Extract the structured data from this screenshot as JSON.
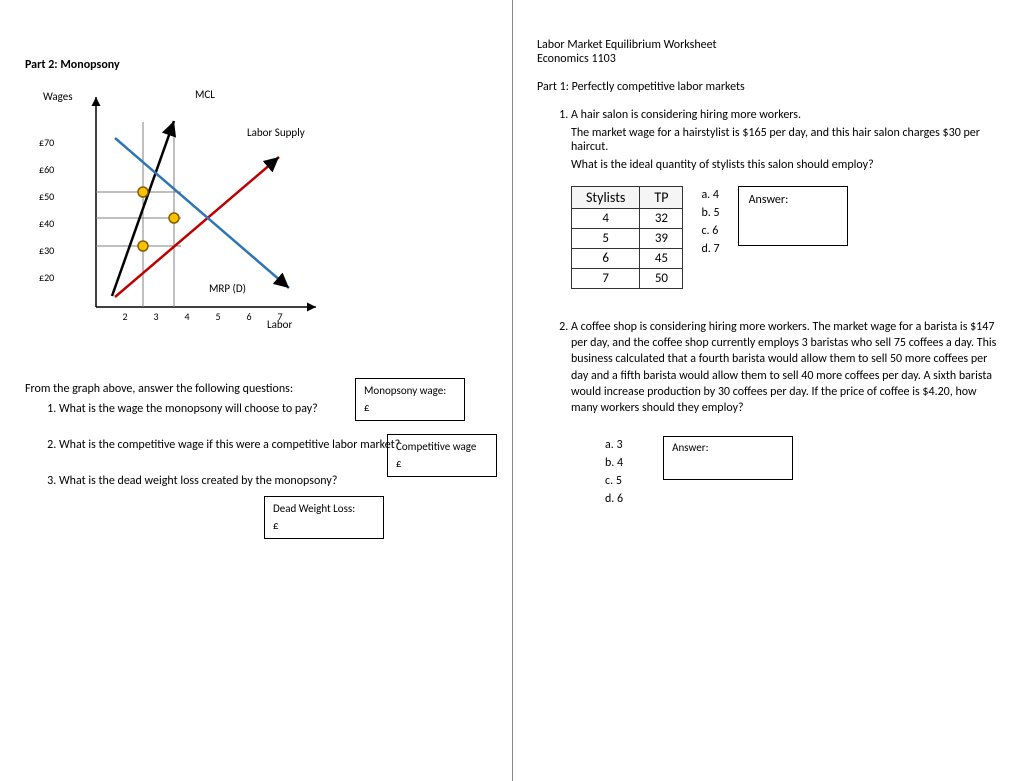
{
  "left": {
    "title": "Part 2: Monopsony",
    "chart": {
      "y_axis_label": "Wages",
      "x_axis_label": "Labor",
      "y_ticks": [
        "£70",
        "£60",
        "£50",
        "£40",
        "£30",
        "£20"
      ],
      "x_ticks": [
        "2",
        "3",
        "4",
        "5",
        "6",
        "7"
      ],
      "curves": {
        "mcl": {
          "label": "MCL",
          "color": "#000000",
          "points": [
            [
              51,
              204
            ],
            [
              113,
              29
            ]
          ]
        },
        "supply": {
          "label": "Labor Supply",
          "color": "#c00000",
          "points": [
            [
              54,
              205
            ],
            [
              218,
              65
            ]
          ]
        },
        "mrp": {
          "label": "MRP (D)",
          "color": "#2e75b6",
          "points": [
            [
              54,
              46
            ],
            [
              228,
              196
            ]
          ]
        }
      },
      "guide_vlines_x": [
        82,
        113
      ],
      "guide_hlines_y": [
        100,
        154,
        126
      ],
      "dot_color": "#ffc000",
      "dot_border": "#7f6000",
      "dots": [
        [
          82,
          100
        ],
        [
          82,
          154
        ],
        [
          113,
          126
        ]
      ],
      "axis_color": "#000000",
      "grid": false
    },
    "intro": "From the graph above, answer the following questions:",
    "questions": [
      "What is the wage the monopsony will choose to pay?",
      "What is the competitive wage if this were a competitive labor market?",
      "What is the dead weight loss created by the monopsony?"
    ],
    "boxes": {
      "monopsony": {
        "title": "Monopsony wage:",
        "currency": "£"
      },
      "competitive": {
        "title": "Competitive wage",
        "currency": "£"
      },
      "dwl": {
        "title": "Dead Weight Loss:",
        "currency": "£"
      }
    }
  },
  "right": {
    "title": "Labor Market Equilibrium Worksheet",
    "subtitle": "Economics 1103",
    "part_label": "Part 1:  Perfectly competitive labor markets",
    "q1": {
      "line1": "A hair salon is considering hiring more workers.",
      "line2": "The market wage for a hairstylist is $165 per day, and this hair salon charges $30 per haircut.",
      "line3": "What is the ideal quantity of stylists this salon should employ?",
      "table": {
        "columns": [
          "Stylists",
          "TP"
        ],
        "rows": [
          [
            "4",
            "32"
          ],
          [
            "5",
            "39"
          ],
          [
            "6",
            "45"
          ],
          [
            "7",
            "50"
          ]
        ]
      },
      "choices": [
        "a. 4",
        "b. 5",
        "c. 6",
        "d. 7"
      ],
      "answer_label": "Answer:"
    },
    "q2": {
      "text": "A coffee shop is considering hiring more workers. The market wage for a barista is $147 per day, and the coffee shop currently employs 3 baristas who sell 75 coffees a day. This business calculated that a fourth barista would allow them to sell 50 more coffees per day and a fifth barista would allow them to sell 40 more coffees per day.  A sixth barista would increase production by 30 coffees per day.  If the price of coffee is $4.20, how many workers should they employ?",
      "choices": [
        "a. 3",
        "b. 4",
        "c. 5",
        "d. 6"
      ],
      "answer_label": "Answer:"
    }
  }
}
